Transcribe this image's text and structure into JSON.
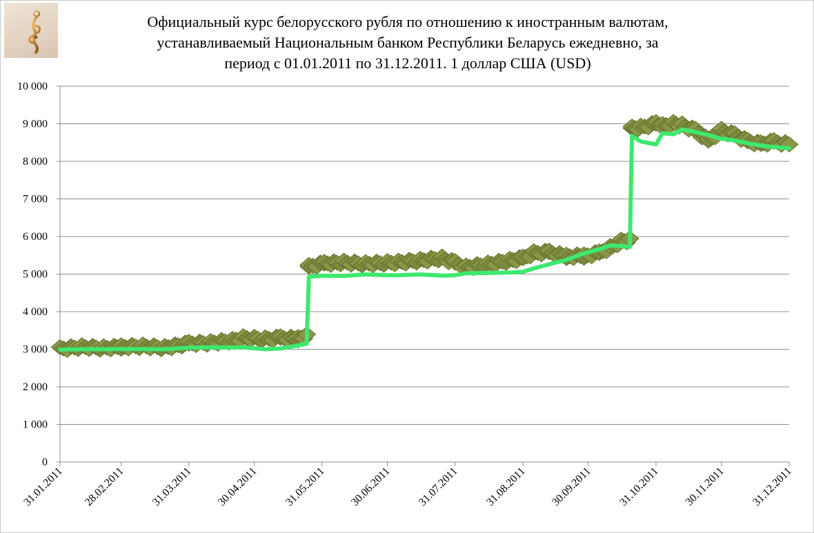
{
  "chart_data": {
    "type": "line",
    "title_lines": [
      "Официальный курс белорусского рубля по отношению к иностранным валютам,",
      "устанавливаемый Национальным банком Республики Беларусь ежедневно, за",
      "период с 01.01.2011 по 31.12.2011. 1 доллар США (USD)"
    ],
    "xlabel": "",
    "ylabel": "",
    "ylim": [
      0,
      10000
    ],
    "y_ticks": [
      0,
      1000,
      2000,
      3000,
      4000,
      5000,
      6000,
      7000,
      8000,
      9000,
      10000
    ],
    "y_tick_labels": [
      "0",
      "1 000",
      "2 000",
      "3 000",
      "4 000",
      "5 000",
      "6 000",
      "7 000",
      "8 000",
      "9 000",
      "10 000"
    ],
    "x_range": [
      "2011-01-31",
      "2011-12-31"
    ],
    "x_ticks": [
      "2011-01-31",
      "2011-02-28",
      "2011-03-31",
      "2011-04-30",
      "2011-05-31",
      "2011-06-30",
      "2011-07-31",
      "2011-08-31",
      "2011-09-30",
      "2011-10-31",
      "2011-11-30",
      "2011-12-31"
    ],
    "x_tick_labels": [
      "31.01.2011",
      "28.02.2011",
      "31.03.2011",
      "30.04.2011",
      "31.05.2011",
      "30.06.2011",
      "31.07.2011",
      "31.08.2011",
      "30.09.2011",
      "31.10.2011",
      "30.11.2011",
      "31.12.2011"
    ],
    "grid": true,
    "legend": "none",
    "colors": {
      "line": "#3ee86f",
      "band": "#7d8a3e",
      "band_dark": "#5d6a2b",
      "grid": "#8c8c8c"
    },
    "series": [
      {
        "points": [
          [
            "2011-01-31",
            2990
          ],
          [
            "2011-02-10",
            3000
          ],
          [
            "2011-02-20",
            3000
          ],
          [
            "2011-02-28",
            3005
          ],
          [
            "2011-03-10",
            3005
          ],
          [
            "2011-03-20",
            3000
          ],
          [
            "2011-03-31",
            3040
          ],
          [
            "2011-04-10",
            3050
          ],
          [
            "2011-04-20",
            3045
          ],
          [
            "2011-04-25",
            3050
          ],
          [
            "2011-05-05",
            3000
          ],
          [
            "2011-05-12",
            3020
          ],
          [
            "2011-05-20",
            3100
          ],
          [
            "2011-05-24",
            3150
          ],
          [
            "2011-05-25",
            4930
          ],
          [
            "2011-06-01",
            4960
          ],
          [
            "2011-06-10",
            4950
          ],
          [
            "2011-06-20",
            4990
          ],
          [
            "2011-06-30",
            4970
          ],
          [
            "2011-07-05",
            4970
          ],
          [
            "2011-07-15",
            4990
          ],
          [
            "2011-07-25",
            4960
          ],
          [
            "2011-07-31",
            4970
          ],
          [
            "2011-08-05",
            5020
          ],
          [
            "2011-08-15",
            5030
          ],
          [
            "2011-08-25",
            5040
          ],
          [
            "2011-08-31",
            5060
          ],
          [
            "2011-09-05",
            5150
          ],
          [
            "2011-09-12",
            5260
          ],
          [
            "2011-09-20",
            5380
          ],
          [
            "2011-09-28",
            5550
          ],
          [
            "2011-10-05",
            5660
          ],
          [
            "2011-10-10",
            5760
          ],
          [
            "2011-10-15",
            5750
          ],
          [
            "2011-10-19",
            5720
          ],
          [
            "2011-10-20",
            8680
          ],
          [
            "2011-10-24",
            8530
          ],
          [
            "2011-10-31",
            8450
          ],
          [
            "2011-11-03",
            8750
          ],
          [
            "2011-11-08",
            8720
          ],
          [
            "2011-11-12",
            8850
          ],
          [
            "2011-11-18",
            8780
          ],
          [
            "2011-11-24",
            8700
          ],
          [
            "2011-11-30",
            8600
          ],
          [
            "2011-12-06",
            8560
          ],
          [
            "2011-12-12",
            8480
          ],
          [
            "2011-12-18",
            8420
          ],
          [
            "2011-12-24",
            8380
          ],
          [
            "2011-12-31",
            8350
          ]
        ]
      }
    ],
    "band_points": [
      [
        "2011-01-31",
        3010
      ],
      [
        "2011-02-10",
        3060
      ],
      [
        "2011-02-20",
        3030
      ],
      [
        "2011-02-28",
        3060
      ],
      [
        "2011-03-10",
        3080
      ],
      [
        "2011-03-20",
        3040
      ],
      [
        "2011-03-31",
        3150
      ],
      [
        "2011-04-10",
        3170
      ],
      [
        "2011-04-20",
        3230
      ],
      [
        "2011-04-25",
        3300
      ],
      [
        "2011-05-05",
        3270
      ],
      [
        "2011-05-12",
        3300
      ],
      [
        "2011-05-20",
        3280
      ],
      [
        "2011-05-24",
        3350
      ],
      [
        "2011-05-25",
        5200
      ],
      [
        "2011-06-01",
        5280
      ],
      [
        "2011-06-10",
        5310
      ],
      [
        "2011-06-20",
        5270
      ],
      [
        "2011-06-30",
        5300
      ],
      [
        "2011-07-05",
        5310
      ],
      [
        "2011-07-15",
        5360
      ],
      [
        "2011-07-25",
        5420
      ],
      [
        "2011-07-31",
        5300
      ],
      [
        "2011-08-05",
        5180
      ],
      [
        "2011-08-15",
        5260
      ],
      [
        "2011-08-25",
        5360
      ],
      [
        "2011-08-31",
        5420
      ],
      [
        "2011-09-05",
        5560
      ],
      [
        "2011-09-12",
        5580
      ],
      [
        "2011-09-20",
        5470
      ],
      [
        "2011-09-28",
        5480
      ],
      [
        "2011-10-05",
        5560
      ],
      [
        "2011-10-10",
        5700
      ],
      [
        "2011-10-15",
        5870
      ],
      [
        "2011-10-19",
        5900
      ],
      [
        "2011-10-20",
        8880
      ],
      [
        "2011-10-24",
        8900
      ],
      [
        "2011-10-31",
        9000
      ],
      [
        "2011-11-03",
        8950
      ],
      [
        "2011-11-08",
        9000
      ],
      [
        "2011-11-12",
        8960
      ],
      [
        "2011-11-18",
        8820
      ],
      [
        "2011-11-24",
        8550
      ],
      [
        "2011-11-30",
        8820
      ],
      [
        "2011-12-06",
        8700
      ],
      [
        "2011-12-12",
        8530
      ],
      [
        "2011-12-18",
        8460
      ],
      [
        "2011-12-24",
        8520
      ],
      [
        "2011-12-31",
        8450
      ]
    ]
  }
}
